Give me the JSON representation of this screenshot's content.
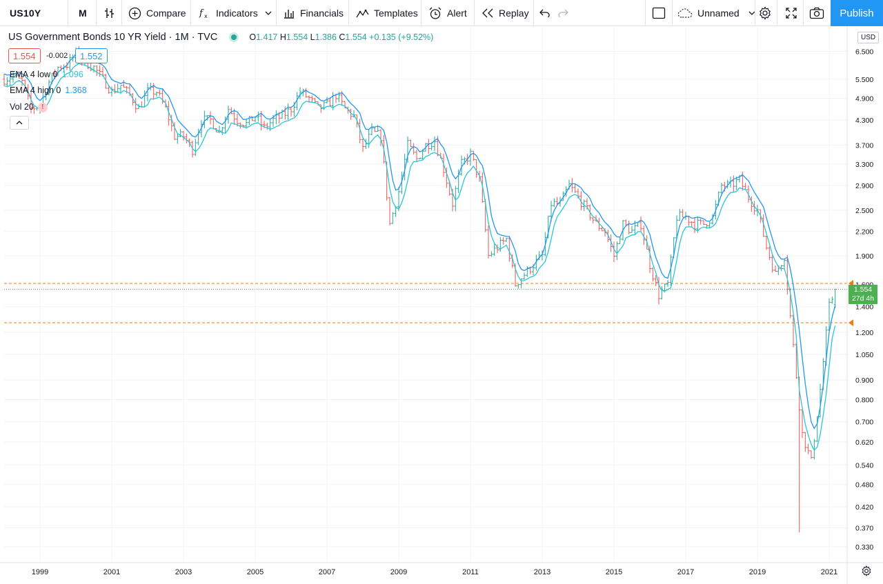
{
  "toolbar": {
    "symbol": "US10Y",
    "interval": "M",
    "compare_label": "Compare",
    "indicators_label": "Indicators",
    "financials_label": "Financials",
    "templates_label": "Templates",
    "alert_label": "Alert",
    "replay_label": "Replay",
    "layout_name": "Unnamed",
    "publish_label": "Publish",
    "icons": [
      "bar-style-icon",
      "plus-circle-icon",
      "fx-icon",
      "chevron-down-icon",
      "financials-icon",
      "templates-icon",
      "alarm-clock-icon",
      "replay-icon",
      "undo-icon",
      "redo-icon",
      "square-icon",
      "cloud-icon",
      "gear-icon",
      "fullscreen-icon",
      "camera-icon"
    ]
  },
  "legend": {
    "title": "US Government Bonds 10 YR Yield · 1M · TVC",
    "o_key": "O",
    "o_val": "1.417",
    "h_key": "H",
    "h_val": "1.554",
    "l_key": "L",
    "l_val": "1.386",
    "c_key": "C",
    "c_val": "1.554",
    "change": "+0.135 (+9.52%)",
    "bid": "1.554",
    "spread": "-0.002",
    "ask": "1.552",
    "ema_low_label": "EMA 4 low 0",
    "ema_low_value": "1.096",
    "ema_high_label": "EMA 4 high 0",
    "ema_high_value": "1.368",
    "vol_label": "Vol 20"
  },
  "price_scale": {
    "currency": "USD",
    "last_price": "1.554",
    "countdown": "27d 4h"
  },
  "colors": {
    "up": "#26a69a",
    "down": "#ef5350",
    "ema_low": "#26c6da",
    "ema_high": "#2196f3",
    "hline": "#f57c00",
    "accent": "#2196f3"
  },
  "chart_data": {
    "type": "ohlc-bar",
    "scale": "log",
    "y_ticks": [
      "6.500",
      "5.500",
      "4.900",
      "4.300",
      "3.700",
      "3.300",
      "2.900",
      "2.500",
      "2.200",
      "1.900",
      "1.600",
      "1.400",
      "1.200",
      "1.050",
      "0.900",
      "0.800",
      "0.700",
      "0.620",
      "0.540",
      "0.480",
      "0.420",
      "0.370",
      "0.330"
    ],
    "ylim": [
      0.3,
      7.5
    ],
    "x_ticks": [
      "1999",
      "2001",
      "2003",
      "2005",
      "2007",
      "2009",
      "2011",
      "2013",
      "2015",
      "2017",
      "2019",
      "2021"
    ],
    "xlim": [
      1998.0,
      2021.5
    ],
    "horizontal_lines": [
      1.61,
      1.27
    ],
    "series": [
      {
        "name": "US10Y",
        "closes": [
          [
            1998.0,
            5.5
          ],
          [
            1998.25,
            5.6
          ],
          [
            1998.5,
            5.4
          ],
          [
            1998.75,
            4.6
          ],
          [
            1999.0,
            4.7
          ],
          [
            1999.25,
            5.4
          ],
          [
            1999.5,
            5.9
          ],
          [
            1999.75,
            6.0
          ],
          [
            2000.0,
            6.4
          ],
          [
            2000.25,
            6.1
          ],
          [
            2000.5,
            5.9
          ],
          [
            2000.75,
            5.5
          ],
          [
            2001.0,
            5.1
          ],
          [
            2001.25,
            5.3
          ],
          [
            2001.5,
            5.0
          ],
          [
            2001.75,
            4.6
          ],
          [
            2002.0,
            5.1
          ],
          [
            2002.25,
            5.1
          ],
          [
            2002.5,
            4.6
          ],
          [
            2002.75,
            3.9
          ],
          [
            2003.0,
            3.9
          ],
          [
            2003.25,
            3.6
          ],
          [
            2003.5,
            4.3
          ],
          [
            2003.75,
            4.3
          ],
          [
            2004.0,
            4.0
          ],
          [
            2004.25,
            4.6
          ],
          [
            2004.5,
            4.3
          ],
          [
            2004.75,
            4.2
          ],
          [
            2005.0,
            4.4
          ],
          [
            2005.25,
            4.1
          ],
          [
            2005.5,
            4.3
          ],
          [
            2005.75,
            4.4
          ],
          [
            2006.0,
            4.6
          ],
          [
            2006.25,
            5.1
          ],
          [
            2006.5,
            4.9
          ],
          [
            2006.75,
            4.6
          ],
          [
            2007.0,
            4.7
          ],
          [
            2007.25,
            5.0
          ],
          [
            2007.5,
            4.6
          ],
          [
            2007.75,
            4.4
          ],
          [
            2008.0,
            3.6
          ],
          [
            2008.25,
            4.0
          ],
          [
            2008.5,
            3.9
          ],
          [
            2008.75,
            2.3
          ],
          [
            2009.0,
            2.8
          ],
          [
            2009.25,
            3.7
          ],
          [
            2009.5,
            3.4
          ],
          [
            2009.75,
            3.7
          ],
          [
            2010.0,
            3.8
          ],
          [
            2010.25,
            3.2
          ],
          [
            2010.5,
            2.6
          ],
          [
            2010.75,
            3.3
          ],
          [
            2011.0,
            3.5
          ],
          [
            2011.25,
            3.0
          ],
          [
            2011.5,
            1.9
          ],
          [
            2011.75,
            2.0
          ],
          [
            2012.0,
            2.1
          ],
          [
            2012.25,
            1.6
          ],
          [
            2012.5,
            1.7
          ],
          [
            2012.75,
            1.8
          ],
          [
            2013.0,
            1.9
          ],
          [
            2013.25,
            2.6
          ],
          [
            2013.5,
            2.6
          ],
          [
            2013.75,
            2.9
          ],
          [
            2014.0,
            2.7
          ],
          [
            2014.25,
            2.5
          ],
          [
            2014.5,
            2.3
          ],
          [
            2014.75,
            2.2
          ],
          [
            2015.0,
            1.9
          ],
          [
            2015.25,
            2.3
          ],
          [
            2015.5,
            2.2
          ],
          [
            2015.75,
            2.3
          ],
          [
            2016.0,
            1.8
          ],
          [
            2016.25,
            1.5
          ],
          [
            2016.5,
            1.6
          ],
          [
            2016.75,
            2.4
          ],
          [
            2017.0,
            2.4
          ],
          [
            2017.25,
            2.3
          ],
          [
            2017.5,
            2.3
          ],
          [
            2017.75,
            2.4
          ],
          [
            2018.0,
            2.9
          ],
          [
            2018.25,
            2.9
          ],
          [
            2018.5,
            3.0
          ],
          [
            2018.75,
            2.7
          ],
          [
            2019.0,
            2.5
          ],
          [
            2019.25,
            2.0
          ],
          [
            2019.5,
            1.7
          ],
          [
            2019.75,
            1.9
          ],
          [
            2020.0,
            1.1
          ],
          [
            2020.25,
            0.65
          ],
          [
            2020.5,
            0.55
          ],
          [
            2020.75,
            0.85
          ],
          [
            2021.0,
            1.4
          ],
          [
            2021.17,
            1.554
          ]
        ]
      }
    ]
  }
}
